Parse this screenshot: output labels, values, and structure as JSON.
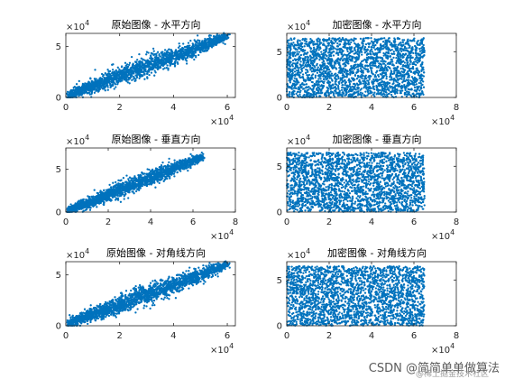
{
  "colors": {
    "marker": "#0072BD",
    "axis": "#262626"
  },
  "watermark": {
    "text": "CSDN @简简单单做算法",
    "subtext": "@稀土掘金技术社区"
  },
  "chart_data": [
    {
      "id": "orig-h",
      "type": "scatter",
      "title": "原始图像 - 水平方向",
      "xlim": [
        0,
        6.3
      ],
      "ylim": [
        0,
        6.3
      ],
      "xticks": [
        "0",
        "2",
        "4",
        "6"
      ],
      "xtick_values": [
        0,
        2,
        4,
        6
      ],
      "yticks": [
        "0",
        "5"
      ],
      "ytick_values": [
        0,
        5
      ],
      "x_exponent": "×10^4",
      "y_exponent": "×10^4",
      "pattern": "correlated",
      "series": [
        {
          "x": [
            0.5,
            1,
            1.5,
            2,
            2.5,
            3,
            3.5,
            4,
            4.5,
            5,
            5.5,
            6
          ],
          "y": [
            0.7,
            1.1,
            1.6,
            2.1,
            2.6,
            3.1,
            3.5,
            4.0,
            4.5,
            5.0,
            5.5,
            6.0
          ]
        }
      ]
    },
    {
      "id": "enc-h",
      "type": "scatter",
      "title": "加密图像 - 水平方向",
      "xlim": [
        0,
        8
      ],
      "ylim": [
        0,
        7
      ],
      "xticks": [
        "0",
        "2",
        "4",
        "6",
        "8"
      ],
      "xtick_values": [
        0,
        2,
        4,
        6,
        8
      ],
      "yticks": [
        "0",
        "5"
      ],
      "ytick_values": [
        0,
        5
      ],
      "x_exponent": "×10^4",
      "y_exponent": "×10^4",
      "pattern": "uniform",
      "series": [
        {
          "x_range": [
            0,
            6.5
          ],
          "y_range": [
            0,
            6.5
          ]
        }
      ]
    },
    {
      "id": "orig-v",
      "type": "scatter",
      "title": "原始图像 - 垂直方向",
      "xlim": [
        0,
        8
      ],
      "ylim": [
        0,
        7.5
      ],
      "xticks": [
        "0",
        "2",
        "4",
        "6",
        "8"
      ],
      "xtick_values": [
        0,
        2,
        4,
        6,
        8
      ],
      "yticks": [
        "0",
        "5"
      ],
      "ytick_values": [
        0,
        5
      ],
      "x_exponent": "×10^4",
      "y_exponent": "×10^4",
      "pattern": "correlated",
      "series": [
        {
          "x": [
            0.5,
            1,
            1.5,
            2,
            2.5,
            3,
            3.5,
            4,
            4.5,
            5,
            5.5,
            6,
            6.5
          ],
          "y": [
            0.6,
            1.0,
            1.5,
            2.0,
            2.5,
            3.0,
            3.5,
            4.0,
            4.5,
            5.0,
            5.5,
            6.0,
            6.5
          ]
        }
      ]
    },
    {
      "id": "enc-v",
      "type": "scatter",
      "title": "加密图像 - 垂直方向",
      "xlim": [
        0,
        8
      ],
      "ylim": [
        0,
        7
      ],
      "xticks": [
        "0",
        "2",
        "4",
        "6",
        "8"
      ],
      "xtick_values": [
        0,
        2,
        4,
        6,
        8
      ],
      "yticks": [
        "0",
        "5"
      ],
      "ytick_values": [
        0,
        5
      ],
      "x_exponent": "×10^4",
      "y_exponent": "×10^4",
      "pattern": "uniform",
      "series": [
        {
          "x_range": [
            0,
            6.5
          ],
          "y_range": [
            0,
            6.5
          ]
        }
      ]
    },
    {
      "id": "orig-d",
      "type": "scatter",
      "title": "原始图像 - 对角线方向",
      "xlim": [
        0,
        6.3
      ],
      "ylim": [
        0,
        6.3
      ],
      "xticks": [
        "0",
        "2",
        "4",
        "6"
      ],
      "xtick_values": [
        0,
        2,
        4,
        6
      ],
      "yticks": [
        "0",
        "5"
      ],
      "ytick_values": [
        0,
        5
      ],
      "x_exponent": "×10^4",
      "y_exponent": "×10^4",
      "pattern": "correlated",
      "series": [
        {
          "x": [
            0.5,
            1,
            1.5,
            2,
            2.5,
            3,
            3.5,
            4,
            4.5,
            5,
            5.5,
            6
          ],
          "y": [
            0.7,
            1.1,
            1.6,
            2.1,
            2.6,
            3.1,
            3.5,
            4.0,
            4.5,
            5.0,
            5.5,
            6.0
          ]
        }
      ]
    },
    {
      "id": "enc-d",
      "type": "scatter",
      "title": "加密图像 - 对角线方向",
      "xlim": [
        0,
        8
      ],
      "ylim": [
        0,
        7
      ],
      "xticks": [
        "0",
        "2",
        "4",
        "6",
        "8"
      ],
      "xtick_values": [
        0,
        2,
        4,
        6,
        8
      ],
      "yticks": [
        "0",
        "5"
      ],
      "ytick_values": [
        0,
        5
      ],
      "x_exponent": "×10^4",
      "y_exponent": "×10^4",
      "pattern": "uniform",
      "series": [
        {
          "x_range": [
            0,
            6.5
          ],
          "y_range": [
            0,
            6.5
          ]
        }
      ]
    }
  ]
}
